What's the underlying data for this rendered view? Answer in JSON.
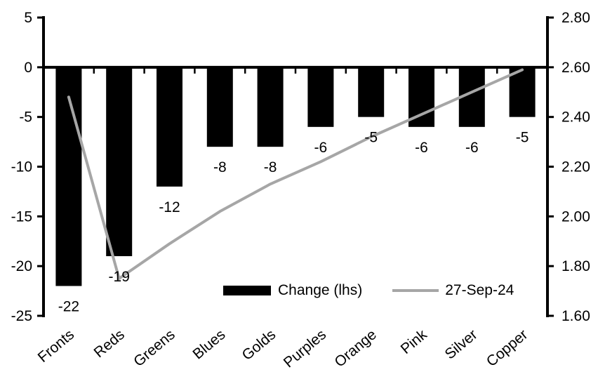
{
  "chart_data": {
    "type": "bar",
    "subtype": "bar+line combo, dual axis",
    "title": "",
    "xlabel": "",
    "ylabel": "",
    "grid": false,
    "legend_position": "inside-bottom",
    "categories": [
      "Fronts",
      "Reds",
      "Greens",
      "Blues",
      "Golds",
      "Purples",
      "Orange",
      "Pink",
      "Silver",
      "Copper"
    ],
    "series": [
      {
        "name": "Change (lhs)",
        "type": "bar",
        "axis": "left",
        "color": "#000000",
        "values": [
          -22,
          -19,
          -12,
          -8,
          -8,
          -6,
          -5,
          -6,
          -6,
          -5
        ]
      },
      {
        "name": "27-Sep-24",
        "type": "line",
        "axis": "right",
        "color": "#a6a6a6",
        "values": [
          2.48,
          1.75,
          1.89,
          2.02,
          2.13,
          2.22,
          2.32,
          2.41,
          2.5,
          2.59
        ]
      }
    ],
    "bar_labels": [
      "-22",
      "-19",
      "-12",
      "-8",
      "-8",
      "-6",
      "-5",
      "-6",
      "-6",
      "-5"
    ],
    "left_axis": {
      "min": -25,
      "max": 5,
      "step": 5,
      "tick_labels": [
        "5",
        "0",
        "-5",
        "-10",
        "-15",
        "-20",
        "-25"
      ]
    },
    "right_axis": {
      "min": 1.6,
      "max": 2.8,
      "step": 0.2,
      "tick_labels": [
        "2.80",
        "2.60",
        "2.40",
        "2.20",
        "2.00",
        "1.80",
        "1.60"
      ]
    },
    "legend": [
      {
        "label": "Change (lhs)",
        "swatch": "bar",
        "color": "#000000"
      },
      {
        "label": "27-Sep-24",
        "swatch": "line",
        "color": "#a6a6a6"
      }
    ],
    "colors": {
      "axis": "#000000",
      "bar": "#000000",
      "line": "#a6a6a6",
      "text": "#000000",
      "background": "#ffffff"
    }
  }
}
